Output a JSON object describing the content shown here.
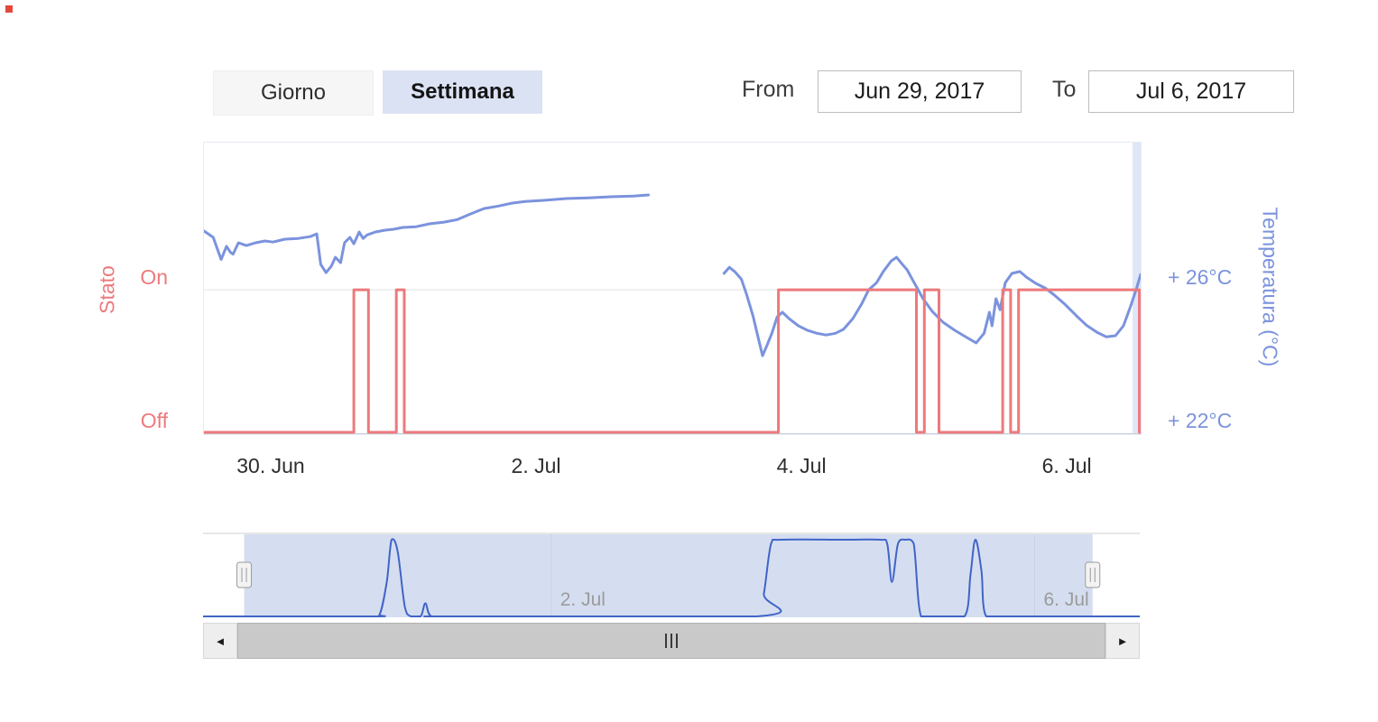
{
  "page": {
    "marker_color": "#e2483d"
  },
  "toolbar": {
    "range_buttons": [
      {
        "label": "Giorno",
        "active": false
      },
      {
        "label": "Settimana",
        "active": true
      }
    ],
    "from_label": "From",
    "from_value": "Jun 29, 2017",
    "to_label": "To",
    "to_value": "Jul 6, 2017"
  },
  "chart_data": {
    "type": "line",
    "title": "",
    "x_axis": {
      "unit": "days since Jun 29, 2017 00:00",
      "min": 0.49,
      "max": 7.55,
      "ticks": [
        {
          "value": 1,
          "label": "30. Jun"
        },
        {
          "value": 3,
          "label": "2. Jul"
        },
        {
          "value": 5,
          "label": "4. Jul"
        },
        {
          "value": 7,
          "label": "6. Jul"
        }
      ]
    },
    "y_axis_left": {
      "title": "Stato",
      "color": "#ec7a7d",
      "ticks": [
        {
          "value": 1,
          "label": "On"
        },
        {
          "value": 0,
          "label": "Off"
        }
      ]
    },
    "y_axis_right": {
      "title": "Temperatura (°C)",
      "color": "#7b93dd",
      "min": 21.95,
      "max": 30.13,
      "ticks": [
        {
          "value": 26,
          "label": "+ 26°C"
        },
        {
          "value": 22,
          "label": "+ 22°C"
        }
      ]
    },
    "grid_value": 26,
    "edge_band_color": "#dfe6f7",
    "series": [
      {
        "name": "Temperatura (°C)",
        "type": "line",
        "axis": "right",
        "color": "#7b93dd",
        "segments": [
          [
            [
              0.49,
              27.65
            ],
            [
              0.56,
              27.47
            ],
            [
              0.6,
              27.05
            ],
            [
              0.62,
              26.85
            ],
            [
              0.66,
              27.22
            ],
            [
              0.69,
              27.05
            ],
            [
              0.71,
              27.0
            ],
            [
              0.75,
              27.32
            ],
            [
              0.81,
              27.24
            ],
            [
              0.88,
              27.32
            ],
            [
              0.95,
              27.37
            ],
            [
              1.01,
              27.34
            ],
            [
              1.1,
              27.42
            ],
            [
              1.2,
              27.44
            ],
            [
              1.29,
              27.49
            ],
            [
              1.34,
              27.57
            ],
            [
              1.37,
              26.71
            ],
            [
              1.41,
              26.48
            ],
            [
              1.45,
              26.66
            ],
            [
              1.48,
              26.91
            ],
            [
              1.52,
              26.76
            ],
            [
              1.55,
              27.32
            ],
            [
              1.59,
              27.47
            ],
            [
              1.62,
              27.29
            ],
            [
              1.66,
              27.62
            ],
            [
              1.69,
              27.44
            ],
            [
              1.72,
              27.54
            ],
            [
              1.78,
              27.62
            ],
            [
              1.85,
              27.67
            ],
            [
              1.92,
              27.7
            ],
            [
              1.99,
              27.75
            ],
            [
              2.09,
              27.77
            ],
            [
              2.19,
              27.85
            ],
            [
              2.3,
              27.9
            ],
            [
              2.4,
              27.97
            ],
            [
              2.5,
              28.13
            ],
            [
              2.6,
              28.28
            ],
            [
              2.71,
              28.35
            ],
            [
              2.81,
              28.43
            ],
            [
              2.91,
              28.48
            ],
            [
              3.05,
              28.51
            ],
            [
              3.22,
              28.56
            ],
            [
              3.39,
              28.58
            ],
            [
              3.56,
              28.61
            ],
            [
              3.73,
              28.63
            ],
            [
              3.84,
              28.66
            ]
          ],
          [
            [
              4.41,
              26.46
            ],
            [
              4.45,
              26.63
            ],
            [
              4.49,
              26.51
            ],
            [
              4.54,
              26.3
            ],
            [
              4.58,
              25.87
            ],
            [
              4.63,
              25.24
            ],
            [
              4.67,
              24.61
            ],
            [
              4.7,
              24.15
            ],
            [
              4.73,
              24.41
            ],
            [
              4.77,
              24.78
            ],
            [
              4.81,
              25.24
            ],
            [
              4.85,
              25.37
            ],
            [
              4.9,
              25.19
            ],
            [
              4.97,
              24.99
            ],
            [
              5.04,
              24.86
            ],
            [
              5.11,
              24.78
            ],
            [
              5.18,
              24.73
            ],
            [
              5.25,
              24.78
            ],
            [
              5.31,
              24.89
            ],
            [
              5.38,
              25.19
            ],
            [
              5.45,
              25.62
            ],
            [
              5.5,
              26.0
            ],
            [
              5.56,
              26.2
            ],
            [
              5.61,
              26.51
            ],
            [
              5.67,
              26.81
            ],
            [
              5.71,
              26.91
            ],
            [
              5.75,
              26.73
            ],
            [
              5.79,
              26.56
            ],
            [
              5.85,
              26.15
            ],
            [
              5.91,
              25.75
            ],
            [
              5.98,
              25.39
            ],
            [
              6.06,
              25.09
            ],
            [
              6.15,
              24.86
            ],
            [
              6.24,
              24.66
            ],
            [
              6.31,
              24.51
            ],
            [
              6.37,
              24.78
            ],
            [
              6.41,
              25.37
            ],
            [
              6.43,
              24.99
            ],
            [
              6.46,
              25.75
            ],
            [
              6.49,
              25.44
            ],
            [
              6.53,
              26.2
            ],
            [
              6.58,
              26.46
            ],
            [
              6.64,
              26.51
            ],
            [
              6.69,
              26.35
            ],
            [
              6.76,
              26.18
            ],
            [
              6.83,
              26.05
            ],
            [
              6.9,
              25.85
            ],
            [
              6.98,
              25.59
            ],
            [
              7.06,
              25.29
            ],
            [
              7.14,
              25.01
            ],
            [
              7.22,
              24.81
            ],
            [
              7.29,
              24.68
            ],
            [
              7.36,
              24.71
            ],
            [
              7.42,
              24.99
            ],
            [
              7.47,
              25.49
            ],
            [
              7.52,
              26.05
            ],
            [
              7.55,
              26.43
            ]
          ]
        ]
      },
      {
        "name": "Stato",
        "type": "step",
        "axis": "left",
        "color": "#ed797c",
        "points": [
          [
            0.49,
            0
          ],
          [
            1.62,
            0
          ],
          [
            1.62,
            1
          ],
          [
            1.73,
            1
          ],
          [
            1.73,
            0
          ],
          [
            1.94,
            0
          ],
          [
            1.94,
            1
          ],
          [
            2.0,
            1
          ],
          [
            2.0,
            0
          ],
          [
            4.82,
            0
          ],
          [
            4.82,
            1
          ],
          [
            5.86,
            1
          ],
          [
            5.86,
            0
          ],
          [
            5.92,
            0
          ],
          [
            5.92,
            1
          ],
          [
            6.03,
            1
          ],
          [
            6.03,
            0
          ],
          [
            6.51,
            0
          ],
          [
            6.51,
            1
          ],
          [
            6.57,
            1
          ],
          [
            6.57,
            0
          ],
          [
            6.63,
            0
          ],
          [
            6.63,
            1
          ],
          [
            7.54,
            1
          ],
          [
            7.54,
            0
          ],
          [
            7.55,
            0
          ]
        ]
      }
    ]
  },
  "navigator": {
    "x_min": 0.12,
    "x_max": 7.87,
    "selected_from": 0.46,
    "selected_to": 7.48,
    "mask_color": "rgba(104,136,201,0.28)",
    "line_color": "#4064c8",
    "gridline_color": "#cdd2dc",
    "labels": [
      {
        "value": 3,
        "label": "2. Jul"
      },
      {
        "value": 7,
        "label": "6. Jul"
      }
    ],
    "series_points": [
      [
        0.12,
        0
      ],
      [
        1.5,
        0
      ],
      [
        1.58,
        0.02
      ],
      [
        1.64,
        0.45
      ],
      [
        1.68,
        1.0
      ],
      [
        1.73,
        0.85
      ],
      [
        1.79,
        0.12
      ],
      [
        1.84,
        0
      ],
      [
        1.92,
        0
      ],
      [
        1.96,
        0.17
      ],
      [
        2.01,
        0
      ],
      [
        2.2,
        0
      ],
      [
        4.7,
        0
      ],
      [
        4.76,
        0.3
      ],
      [
        4.82,
        0.95
      ],
      [
        4.9,
        1.0
      ],
      [
        5.4,
        1.0
      ],
      [
        5.72,
        1.0
      ],
      [
        5.78,
        0.95
      ],
      [
        5.82,
        0.45
      ],
      [
        5.87,
        0.95
      ],
      [
        5.93,
        1.0
      ],
      [
        6.0,
        0.95
      ],
      [
        6.06,
        0
      ],
      [
        6.2,
        0
      ],
      [
        6.42,
        0
      ],
      [
        6.47,
        0.55
      ],
      [
        6.51,
        1.0
      ],
      [
        6.56,
        0.6
      ],
      [
        6.6,
        0
      ],
      [
        6.8,
        0
      ],
      [
        7.87,
        0
      ]
    ]
  },
  "scrollbar": {
    "left_arrow_icon": "◄",
    "right_arrow_icon": "►",
    "grip_icon": "III"
  }
}
